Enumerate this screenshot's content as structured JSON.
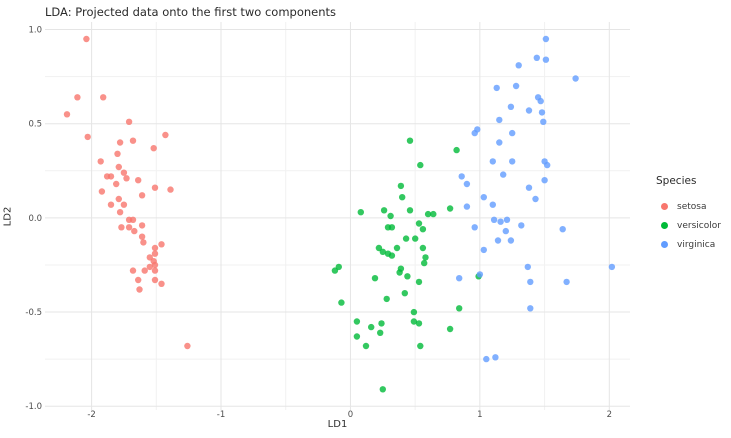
{
  "title": "LDA: Projected data onto the first two components",
  "axes": {
    "x_label": "LD1",
    "y_label": "LD2"
  },
  "legend": {
    "title": "Species",
    "items": [
      {
        "label": "setosa",
        "color": "#F8766D"
      },
      {
        "label": "versicolor",
        "color": "#00BA38"
      },
      {
        "label": "virginica",
        "color": "#619CFF"
      }
    ]
  },
  "chart_data": {
    "type": "scatter",
    "title": "LDA: Projected data onto the first two components",
    "xlabel": "LD1",
    "ylabel": "LD2",
    "xlim": [
      -2.36,
      2.16
    ],
    "ylim": [
      -1.02,
      1.04
    ],
    "x_ticks": [
      -2,
      -1,
      0,
      1,
      2
    ],
    "x_tick_labels": [
      "-2",
      "-1",
      "0",
      "1",
      "2"
    ],
    "y_ticks": [
      1.0,
      0.5,
      0.0,
      -0.5,
      -1.0
    ],
    "y_tick_labels": [
      "1.0",
      "0.5",
      "0.0",
      "-0.5",
      "-1.0"
    ],
    "x_minor_ticks": [
      -1.5,
      -0.5,
      0.5,
      1.5
    ],
    "y_minor_ticks": [
      0.75,
      0.25,
      -0.25,
      -0.75
    ],
    "grid": true,
    "legend_position": "right",
    "marker_opacity": 0.8,
    "colors": {
      "major_grid": "#e5e5e5",
      "minor_grid": "#f1f1f1",
      "tick_label": "#4d4d4d"
    },
    "series": [
      {
        "name": "setosa",
        "color": "#F8766D",
        "points": [
          [
            -2.04,
            0.95
          ],
          [
            -2.11,
            0.64
          ],
          [
            -1.91,
            0.64
          ],
          [
            -2.19,
            0.55
          ],
          [
            -1.71,
            0.51
          ],
          [
            -2.03,
            0.43
          ],
          [
            -1.68,
            0.41
          ],
          [
            -1.43,
            0.44
          ],
          [
            -1.78,
            0.4
          ],
          [
            -1.52,
            0.37
          ],
          [
            -1.8,
            0.34
          ],
          [
            -1.93,
            0.3
          ],
          [
            -1.79,
            0.27
          ],
          [
            -1.75,
            0.24
          ],
          [
            -1.88,
            0.22
          ],
          [
            -1.85,
            0.22
          ],
          [
            -1.73,
            0.21
          ],
          [
            -1.64,
            0.2
          ],
          [
            -1.81,
            0.18
          ],
          [
            -1.51,
            0.16
          ],
          [
            -1.39,
            0.15
          ],
          [
            -1.92,
            0.14
          ],
          [
            -1.61,
            0.12
          ],
          [
            -1.79,
            0.1
          ],
          [
            -1.85,
            0.07
          ],
          [
            -1.75,
            0.07
          ],
          [
            -1.78,
            0.03
          ],
          [
            -1.71,
            -0.01
          ],
          [
            -1.68,
            -0.01
          ],
          [
            -1.77,
            -0.05
          ],
          [
            -1.71,
            -0.05
          ],
          [
            -1.61,
            -0.04
          ],
          [
            -1.67,
            -0.07
          ],
          [
            -1.61,
            -0.1
          ],
          [
            -1.6,
            -0.13
          ],
          [
            -1.46,
            -0.14
          ],
          [
            -1.51,
            -0.16
          ],
          [
            -1.51,
            -0.19
          ],
          [
            -1.55,
            -0.21
          ],
          [
            -1.52,
            -0.23
          ],
          [
            -1.51,
            -0.25
          ],
          [
            -1.55,
            -0.26
          ],
          [
            -1.68,
            -0.28
          ],
          [
            -1.59,
            -0.28
          ],
          [
            -1.51,
            -0.28
          ],
          [
            -1.64,
            -0.33
          ],
          [
            -1.51,
            -0.33
          ],
          [
            -1.46,
            -0.35
          ],
          [
            -1.63,
            -0.38
          ],
          [
            -1.26,
            -0.68
          ]
        ]
      },
      {
        "name": "versicolor",
        "color": "#00BA38",
        "points": [
          [
            0.46,
            0.41
          ],
          [
            0.82,
            0.36
          ],
          [
            0.54,
            0.28
          ],
          [
            0.39,
            0.17
          ],
          [
            0.4,
            0.11
          ],
          [
            0.77,
            0.05
          ],
          [
            0.08,
            0.03
          ],
          [
            0.26,
            0.04
          ],
          [
            0.31,
            0.01
          ],
          [
            0.46,
            0.04
          ],
          [
            0.6,
            0.02
          ],
          [
            0.64,
            0.02
          ],
          [
            0.29,
            -0.05
          ],
          [
            0.32,
            -0.05
          ],
          [
            0.53,
            -0.03
          ],
          [
            0.56,
            -0.06
          ],
          [
            0.43,
            -0.11
          ],
          [
            0.5,
            -0.11
          ],
          [
            0.22,
            -0.16
          ],
          [
            0.25,
            -0.18
          ],
          [
            0.29,
            -0.19
          ],
          [
            0.32,
            -0.2
          ],
          [
            0.36,
            -0.16
          ],
          [
            0.56,
            -0.16
          ],
          [
            0.58,
            -0.21
          ],
          [
            -0.09,
            -0.26
          ],
          [
            0.39,
            -0.27
          ],
          [
            -0.12,
            -0.28
          ],
          [
            0.57,
            -0.24
          ],
          [
            0.19,
            -0.32
          ],
          [
            0.38,
            -0.29
          ],
          [
            0.44,
            -0.31
          ],
          [
            0.53,
            -0.34
          ],
          [
            0.99,
            -0.31
          ],
          [
            0.42,
            -0.4
          ],
          [
            0.28,
            -0.43
          ],
          [
            -0.07,
            -0.45
          ],
          [
            0.49,
            -0.5
          ],
          [
            0.84,
            -0.48
          ],
          [
            0.49,
            -0.55
          ],
          [
            0.53,
            -0.56
          ],
          [
            0.05,
            -0.55
          ],
          [
            0.16,
            -0.58
          ],
          [
            0.24,
            -0.56
          ],
          [
            0.23,
            -0.61
          ],
          [
            0.05,
            -0.63
          ],
          [
            0.77,
            -0.59
          ],
          [
            0.12,
            -0.68
          ],
          [
            0.54,
            -0.68
          ],
          [
            0.25,
            -0.91
          ]
        ]
      },
      {
        "name": "virginica",
        "color": "#619CFF",
        "points": [
          [
            1.51,
            0.95
          ],
          [
            1.44,
            0.85
          ],
          [
            1.51,
            0.84
          ],
          [
            1.3,
            0.81
          ],
          [
            1.74,
            0.74
          ],
          [
            1.13,
            0.69
          ],
          [
            1.28,
            0.7
          ],
          [
            1.45,
            0.64
          ],
          [
            1.47,
            0.62
          ],
          [
            1.24,
            0.59
          ],
          [
            1.38,
            0.57
          ],
          [
            1.48,
            0.56
          ],
          [
            1.49,
            0.51
          ],
          [
            1.15,
            0.52
          ],
          [
            0.98,
            0.47
          ],
          [
            0.96,
            0.45
          ],
          [
            1.25,
            0.45
          ],
          [
            1.15,
            0.4
          ],
          [
            1.1,
            0.3
          ],
          [
            1.25,
            0.3
          ],
          [
            1.5,
            0.3
          ],
          [
            1.52,
            0.28
          ],
          [
            0.86,
            0.22
          ],
          [
            0.9,
            0.18
          ],
          [
            1.18,
            0.23
          ],
          [
            1.5,
            0.2
          ],
          [
            1.38,
            0.16
          ],
          [
            1.03,
            0.11
          ],
          [
            1.43,
            0.1
          ],
          [
            0.9,
            0.06
          ],
          [
            1.1,
            0.07
          ],
          [
            1.11,
            -0.01
          ],
          [
            1.16,
            -0.02
          ],
          [
            1.21,
            -0.01
          ],
          [
            0.96,
            -0.05
          ],
          [
            1.32,
            -0.04
          ],
          [
            1.2,
            -0.07
          ],
          [
            1.64,
            -0.06
          ],
          [
            1.14,
            -0.12
          ],
          [
            1.24,
            -0.12
          ],
          [
            1.03,
            -0.17
          ],
          [
            1.37,
            -0.26
          ],
          [
            2.02,
            -0.26
          ],
          [
            0.84,
            -0.32
          ],
          [
            1.0,
            -0.3
          ],
          [
            1.39,
            -0.34
          ],
          [
            1.67,
            -0.34
          ],
          [
            1.39,
            -0.48
          ],
          [
            1.05,
            -0.75
          ],
          [
            1.12,
            -0.74
          ]
        ]
      }
    ]
  }
}
